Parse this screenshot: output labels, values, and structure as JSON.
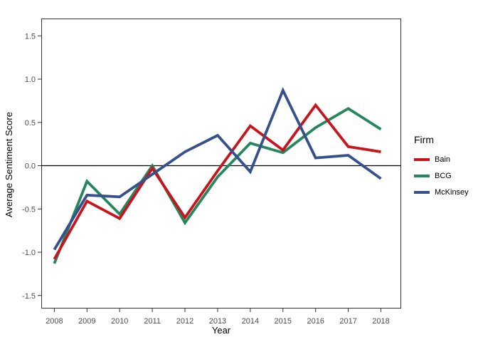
{
  "chart_data": {
    "type": "line",
    "title": "",
    "xlabel": "Year",
    "ylabel": "Average Sentiment Score",
    "x": [
      2008,
      2009,
      2010,
      2011,
      2012,
      2013,
      2014,
      2015,
      2016,
      2017,
      2018
    ],
    "x_tick_labels": [
      "2008",
      "2009",
      "2010",
      "2011",
      "2012",
      "2013",
      "2014",
      "2015",
      "2016",
      "2017",
      "2018"
    ],
    "y_ticks": [
      1.5,
      1.0,
      0.5,
      0.0,
      -0.5,
      -1.0,
      -1.5
    ],
    "y_tick_labels": [
      "1.5",
      "1.0",
      "0.5",
      "0.0",
      "-0.5",
      "-1.0",
      "-1.5"
    ],
    "xlim": [
      2007.6,
      2018.62
    ],
    "ylim": [
      -1.65,
      1.7
    ],
    "grid": false,
    "reference_line_y": 0,
    "series": [
      {
        "name": "Bain",
        "color": "#C8151D",
        "values": [
          -1.08,
          -0.41,
          -0.61,
          -0.03,
          -0.6,
          -0.06,
          0.46,
          0.18,
          0.7,
          0.22,
          0.16
        ]
      },
      {
        "name": "BCG",
        "color": "#27875C",
        "values": [
          -1.13,
          -0.18,
          -0.56,
          0.0,
          -0.66,
          -0.13,
          0.26,
          0.15,
          0.44,
          0.66,
          0.42
        ]
      },
      {
        "name": "McKinsey",
        "color": "#36508C",
        "values": [
          -0.97,
          -0.34,
          -0.36,
          -0.1,
          0.16,
          0.35,
          -0.07,
          0.87,
          0.09,
          0.12,
          -0.15
        ]
      }
    ],
    "legend": {
      "title": "Firm",
      "position": "right"
    }
  }
}
